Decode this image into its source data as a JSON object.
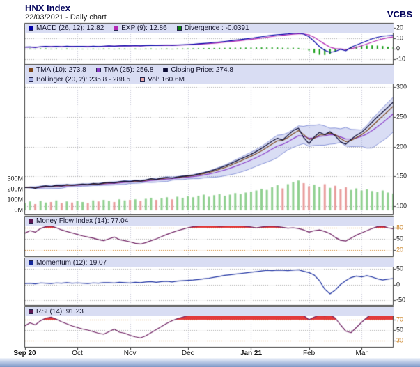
{
  "header": {
    "title": "HNX Index",
    "subtitle": "22/03/2021 - Daily chart",
    "brand": "VCBS"
  },
  "colors": {
    "accent_navy": "#00005a",
    "legend_bg": "#d9ddf3",
    "panel_border": "#3c3c3c",
    "grid": "#a9a9a9",
    "grid_hot": "#cc7d1f",
    "month_grid": "#c6c6d6",
    "macd_line": "#0000a8",
    "exp_line": "#b428b4",
    "divergence": "#0f9b0f",
    "close_line": "#0d0d35",
    "tma10": "#7a4418",
    "tma25": "#8a3cc8",
    "bollinger_fill": "rgba(160,170,228,0.40)",
    "bollinger_edge": "#8894d8",
    "vol_up": "#90d090",
    "vol_down": "#e89c9c",
    "overbought_fill": "#e23b3b",
    "mfi_line": "#6b1a5e",
    "momentum_line": "#1b2fa0",
    "rsi_line": "#6b1a5e"
  },
  "legends": {
    "macd": [
      {
        "color": "#0000a8",
        "label": "MACD (26, 12): 12.82"
      },
      {
        "color": "#b428b4",
        "label": "EXP (9): 12.86"
      },
      {
        "color": "#0f7d0f",
        "label": "Divergence : -0.0391"
      }
    ],
    "main_row1": [
      {
        "color": "#7a4418",
        "label": "TMA (10): 273.8"
      },
      {
        "color": "#8a3cc8",
        "label": "TMA (25): 256.8"
      },
      {
        "color": "#0a0a32",
        "label": "Closing Price: 274.8"
      }
    ],
    "main_row2": [
      {
        "color": "#a8b2e6",
        "label": "Bollinger (20, 2): 235.8 - 288.5"
      },
      {
        "color": "#eaa8a8",
        "label": "Vol: 160.6M"
      }
    ],
    "mfi": [
      {
        "color": "#5c1450",
        "label": "Money Flow Index (14): 77.04"
      }
    ],
    "momentum": [
      {
        "color": "#14289b",
        "label": "Momentum (12): 19.07"
      }
    ],
    "rsi": [
      {
        "color": "#5c1450",
        "label": "RSI (14): 91.23"
      }
    ]
  },
  "axes": {
    "macd": [
      {
        "v": 20,
        "t": "20"
      },
      {
        "v": 10,
        "t": "10"
      },
      {
        "v": 0,
        "t": "0"
      },
      {
        "v": -10,
        "t": "-10"
      }
    ],
    "main": [
      {
        "v": 300,
        "t": "300"
      },
      {
        "v": 250,
        "t": "250"
      },
      {
        "v": 200,
        "t": "200"
      },
      {
        "v": 150,
        "t": "150"
      },
      {
        "v": 100,
        "t": "100"
      }
    ],
    "volume": [
      {
        "v": 300,
        "t": "300M"
      },
      {
        "v": 200,
        "t": "200M"
      },
      {
        "v": 100,
        "t": "100M"
      },
      {
        "v": 0,
        "t": "0M"
      }
    ],
    "mfi": [
      {
        "v": 80,
        "t": "80",
        "hot": true
      },
      {
        "v": 50,
        "t": "50"
      },
      {
        "v": 20,
        "t": "20",
        "hot": true
      }
    ],
    "momentum": [
      {
        "v": 50,
        "t": "50"
      },
      {
        "v": 0,
        "t": "0"
      },
      {
        "v": -50,
        "t": "-50"
      }
    ],
    "rsi": [
      {
        "v": 70,
        "t": "70",
        "hot": true
      },
      {
        "v": 50,
        "t": "50"
      },
      {
        "v": 30,
        "t": "30",
        "hot": true
      }
    ],
    "x_labels": [
      {
        "t": "Sep 20",
        "bold": true
      },
      {
        "t": "Oct"
      },
      {
        "t": "Nov"
      },
      {
        "t": "Dec"
      },
      {
        "t": "Jan 21",
        "bold": true
      },
      {
        "t": "Feb"
      },
      {
        "t": "Mar"
      }
    ]
  },
  "chart_data": {
    "type": "line",
    "subtype": "multi-panel-financial-daily",
    "title": "HNX Index - Daily chart - 22/03/2021",
    "x": {
      "points": 71,
      "month_labels": [
        "Sep 20",
        "Oct",
        "Nov",
        "Dec",
        "Jan 21",
        "Feb",
        "Mar"
      ],
      "month_start_index": [
        0,
        10,
        20,
        31,
        43,
        54,
        64
      ]
    },
    "panels": [
      {
        "id": "macd",
        "yticks": [
          20,
          10,
          0,
          -10
        ],
        "ylim": [
          -15,
          25
        ],
        "series": [
          {
            "key": "macd",
            "name": "MACD (26, 12)",
            "last": 12.82,
            "values": [
              1.5,
              1.8,
              1.2,
              2.0,
              2.2,
              1.9,
              2.3,
              2.0,
              2.4,
              2.1,
              2.3,
              2.2,
              1.9,
              2.4,
              2.1,
              2.5,
              2.7,
              2.4,
              2.8,
              2.9,
              2.7,
              3.0,
              2.8,
              3.1,
              3.3,
              3.0,
              3.3,
              3.5,
              3.2,
              3.6,
              3.8,
              4.0,
              4.3,
              4.7,
              5.1,
              5.5,
              6.0,
              6.5,
              7.0,
              7.6,
              8.2,
              8.8,
              9.4,
              10.0,
              10.8,
              11.5,
              12.2,
              12.9,
              13.5,
              13.8,
              14.2,
              14.8,
              15.0,
              14.0,
              11.5,
              7.0,
              2.0,
              -1.5,
              -3.5,
              -2.5,
              -0.5,
              -2.0,
              1.5,
              3.5,
              5.5,
              7.5,
              9.5,
              11.0,
              12.0,
              12.5,
              12.82
            ]
          },
          {
            "key": "exp",
            "name": "EXP (9)",
            "last": 12.86,
            "derived": "ema(9) of MACD"
          },
          {
            "key": "divergence",
            "name": "Divergence",
            "last": -0.0391,
            "derived": "MACD - EXP histogram"
          }
        ]
      },
      {
        "id": "price",
        "yticks": [
          300,
          250,
          200,
          150,
          100
        ],
        "ylim": [
          86,
          338
        ],
        "series": [
          {
            "key": "close",
            "name": "Closing Price",
            "last": 274.8,
            "values": [
              131,
              132,
              130,
              133,
              134,
              133,
              135,
              134,
              136,
              135,
              136,
              137,
              136,
              138,
              137,
              139,
              140,
              139,
              141,
              142,
              141,
              143,
              142,
              144,
              146,
              145,
              147,
              148,
              147,
              149,
              150,
              151,
              152,
              154,
              156,
              158,
              161,
              164,
              167,
              171,
              175,
              179,
              183,
              187,
              192,
              197,
              203,
              209,
              214,
              211,
              219,
              227,
              231,
              215,
              205,
              216,
              224,
              220,
              225,
              218,
              208,
              204,
              212,
              219,
              224,
              232,
              241,
              250,
              258,
              266,
              274.8
            ]
          },
          {
            "key": "tma10",
            "name": "TMA (10)",
            "last": 273.8,
            "derived": "moving average of close"
          },
          {
            "key": "tma25",
            "name": "TMA (25)",
            "last": 256.8,
            "derived": "moving average of close"
          },
          {
            "key": "bollinger",
            "name": "Bollinger (20, 2)",
            "last": "235.8 - 288.5",
            "derived": "moving mean ± 2 sd band of close"
          }
        ]
      },
      {
        "id": "volume",
        "unit": "M",
        "yticks": [
          300,
          200,
          100,
          0
        ],
        "series": [
          {
            "key": "volume",
            "name": "Vol",
            "last": 160.6,
            "values": [
              70,
              85,
              60,
              90,
              75,
              80,
              95,
              70,
              85,
              75,
              90,
              80,
              70,
              95,
              85,
              100,
              90,
              80,
              105,
              95,
              100,
              105,
              90,
              110,
              120,
              100,
              115,
              125,
              105,
              130,
              120,
              135,
              125,
              140,
              150,
              130,
              145,
              155,
              140,
              150,
              165,
              155,
              170,
              180,
              190,
              205,
              195,
              220,
              240,
              210,
              250,
              270,
              285,
              260,
              230,
              245,
              225,
              250,
              215,
              235,
              200,
              220,
              195,
              210,
              190,
              200,
              185,
              175,
              190,
              170,
              160.6
            ]
          }
        ]
      },
      {
        "id": "mfi",
        "yticks": [
          80,
          50,
          20
        ],
        "overbought": 80,
        "series": [
          {
            "key": "mfi",
            "name": "Money Flow Index (14)",
            "last": 77.04,
            "values": [
              65,
              72,
              68,
              78,
              83,
              85,
              80,
              74,
              70,
              66,
              62,
              58,
              55,
              52,
              48,
              45,
              50,
              55,
              48,
              45,
              42,
              38,
              36,
              40,
              45,
              50,
              56,
              62,
              67,
              72,
              76,
              80,
              83,
              85,
              87,
              88,
              86,
              84,
              85,
              87,
              88,
              86,
              84,
              82,
              80,
              82,
              84,
              85,
              83,
              81,
              79,
              80,
              78,
              74,
              68,
              72,
              74,
              70,
              64,
              54,
              46,
              44,
              52,
              60,
              66,
              72,
              78,
              83,
              85,
              80,
              77.04
            ]
          }
        ]
      },
      {
        "id": "momentum",
        "yticks": [
          50,
          0,
          -50
        ],
        "series": [
          {
            "key": "momentum",
            "name": "Momentum (12)",
            "last": 19.07,
            "values": [
              3,
              4,
              2,
              5,
              4,
              3,
              5,
              4,
              6,
              4,
              5,
              4,
              3,
              5,
              4,
              6,
              6,
              5,
              7,
              6,
              5,
              7,
              6,
              8,
              9,
              7,
              9,
              10,
              8,
              11,
              12,
              13,
              14,
              16,
              18,
              20,
              23,
              26,
              29,
              31,
              33,
              35,
              37,
              39,
              41,
              43,
              45,
              44,
              46,
              45,
              44,
              46,
              47,
              42,
              38,
              30,
              12,
              -15,
              -30,
              -18,
              0,
              12,
              22,
              27,
              24,
              28,
              24,
              18,
              14,
              17,
              19.07
            ]
          }
        ]
      },
      {
        "id": "rsi",
        "yticks": [
          70,
          50,
          30
        ],
        "overbought": 70,
        "series": [
          {
            "key": "rsi",
            "name": "RSI (14)",
            "last": 91.23,
            "values": [
              58,
              64,
              60,
              68,
              73,
              75,
              71,
              66,
              62,
              58,
              55,
              52,
              50,
              47,
              44,
              42,
              47,
              52,
              46,
              44,
              40,
              37,
              35,
              39,
              45,
              51,
              57,
              63,
              68,
              72,
              75,
              78,
              80,
              82,
              84,
              85,
              83,
              81,
              83,
              85,
              86,
              84,
              82,
              80,
              82,
              84,
              86,
              87,
              85,
              83,
              84,
              86,
              87,
              78,
              70,
              75,
              79,
              77,
              80,
              73,
              60,
              48,
              45,
              55,
              65,
              74,
              82,
              87,
              90,
              89,
              91.23
            ]
          }
        ]
      }
    ]
  }
}
